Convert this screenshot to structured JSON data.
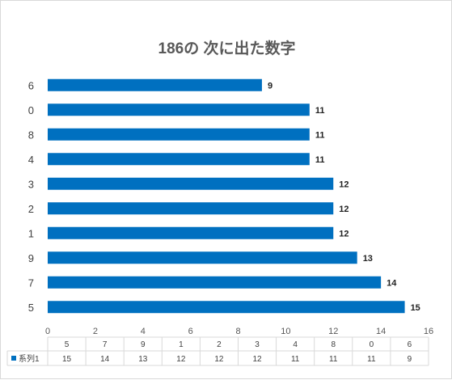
{
  "chart_data": {
    "type": "bar",
    "orientation": "horizontal",
    "title": "186の 次に出た数字",
    "categories": [
      "5",
      "7",
      "9",
      "1",
      "2",
      "3",
      "4",
      "8",
      "0",
      "6"
    ],
    "series": [
      {
        "name": "系列1",
        "values": [
          15,
          14,
          13,
          12,
          12,
          12,
          11,
          11,
          11,
          9
        ],
        "color": "#0070c0"
      }
    ],
    "xlim": [
      0,
      16
    ],
    "x_ticks": [
      0,
      2,
      4,
      6,
      8,
      10,
      12,
      14,
      16
    ],
    "grid": false,
    "data_labels": true,
    "data_table": true,
    "legend": "in-data-table"
  }
}
